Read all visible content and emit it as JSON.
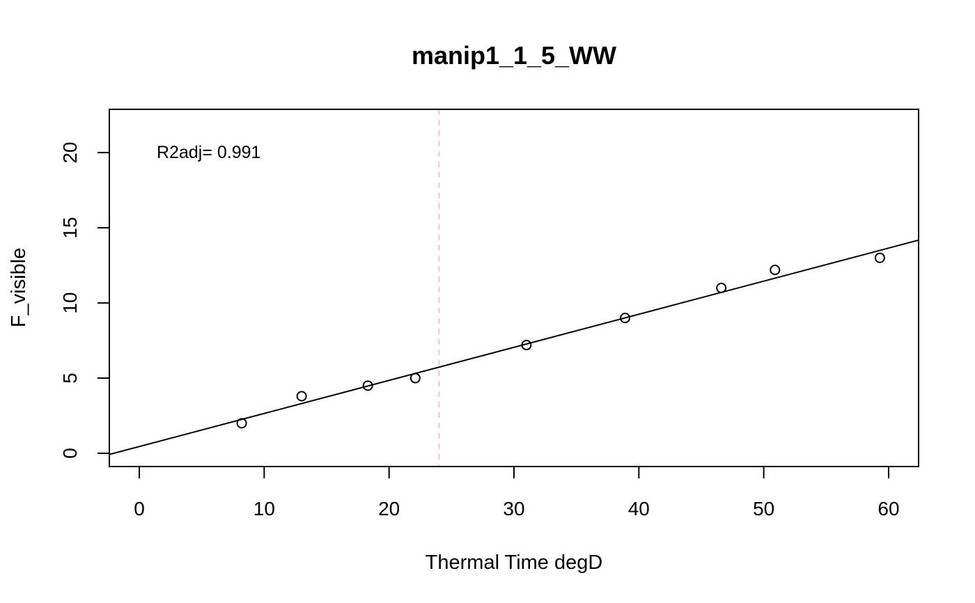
{
  "chart_data": {
    "type": "scatter",
    "title": "manip1_1_5_WW",
    "xlabel": "Thermal Time degD",
    "ylabel": "F_visible",
    "xlim": [
      -2.4,
      62.4
    ],
    "ylim": [
      -0.88,
      22.88
    ],
    "xticks": [
      0,
      10,
      20,
      30,
      40,
      50,
      60
    ],
    "yticks": [
      0,
      5,
      10,
      15,
      20
    ],
    "points": [
      {
        "x": 8.2,
        "y": 2.0
      },
      {
        "x": 13.0,
        "y": 3.8
      },
      {
        "x": 18.3,
        "y": 4.5
      },
      {
        "x": 22.1,
        "y": 5.0
      },
      {
        "x": 31.0,
        "y": 7.2
      },
      {
        "x": 38.9,
        "y": 9.0
      },
      {
        "x": 46.6,
        "y": 11.0
      },
      {
        "x": 50.9,
        "y": 12.2
      },
      {
        "x": 59.3,
        "y": 13.0
      }
    ],
    "fit_line": {
      "intercept": 0.45,
      "slope": 0.22,
      "color": "#000000"
    },
    "vline": {
      "x": 24.0,
      "color": "#ffc0cb",
      "style": "dashed"
    },
    "annotation": "R2adj= 0.991",
    "grid": false,
    "point_color": "#000000"
  }
}
